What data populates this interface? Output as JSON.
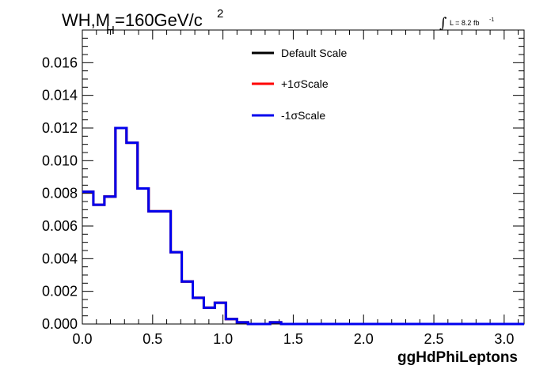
{
  "chart_data": {
    "type": "histogram-step",
    "title_main": "WH,M",
    "title_sub": "H",
    "title_rest": "=160GeV/c",
    "title_sup": "2",
    "lumi_integral": "∫",
    "lumi_text": "L = 8.2 fb",
    "lumi_sup": "-1",
    "xlabel": "ggHdPhiLeptons",
    "xlim": [
      0,
      3.1416
    ],
    "ylim": [
      0,
      0.018
    ],
    "xticks": [
      0.0,
      0.5,
      1.0,
      1.5,
      2.0,
      2.5,
      3.0
    ],
    "xtick_labels": [
      "0.0",
      "0.5",
      "1.0",
      "1.5",
      "2.0",
      "2.5",
      "3.0"
    ],
    "yticks": [
      0.0,
      0.002,
      0.004,
      0.006,
      0.008,
      0.01,
      0.012,
      0.014,
      0.016
    ],
    "ytick_labels": [
      "0.000",
      "0.002",
      "0.004",
      "0.006",
      "0.008",
      "0.010",
      "0.012",
      "0.014",
      "0.016"
    ],
    "bin_edges": [
      0.0,
      0.0785,
      0.1571,
      0.2356,
      0.3142,
      0.3927,
      0.4712,
      0.5498,
      0.6283,
      0.7069,
      0.7854,
      0.8639,
      0.9425,
      1.021,
      1.0996,
      1.1781,
      1.2566,
      1.3352,
      1.4137,
      1.4923,
      1.5708,
      1.6493,
      1.7279,
      1.8064,
      1.885,
      1.9635,
      2.042,
      2.1206,
      2.1991,
      2.2777,
      2.3562,
      2.4347,
      2.5133,
      2.5918,
      2.6704,
      2.7489,
      2.8274,
      2.906,
      2.9845,
      3.0631,
      3.1416
    ],
    "series": [
      {
        "name": "Default Scale",
        "color": "#000000",
        "values": [
          0.0081,
          0.0073,
          0.0078,
          0.012,
          0.0111,
          0.0083,
          0.0069,
          0.0069,
          0.0044,
          0.0026,
          0.0016,
          0.001,
          0.0013,
          0.0003,
          0.0001,
          0.0,
          0.0,
          0.0001,
          0.0,
          0.0,
          0.0,
          0.0,
          0.0,
          0.0,
          0.0,
          0.0,
          0.0,
          0.0,
          0.0,
          0.0,
          0.0,
          0.0,
          0.0,
          0.0,
          0.0,
          0.0,
          0.0,
          0.0,
          0.0,
          0.0
        ]
      },
      {
        "name": "+1σScale",
        "color": "#ff0000",
        "values": [
          0.0081,
          0.0073,
          0.0078,
          0.012,
          0.0111,
          0.0083,
          0.0069,
          0.0069,
          0.0044,
          0.0026,
          0.0016,
          0.001,
          0.0013,
          0.0003,
          0.0001,
          0.0,
          0.0,
          0.0001,
          0.0,
          0.0,
          0.0,
          0.0,
          0.0,
          0.0,
          0.0,
          0.0,
          0.0,
          0.0,
          0.0,
          0.0,
          0.0,
          0.0,
          0.0,
          0.0,
          0.0,
          0.0,
          0.0,
          0.0,
          0.0,
          0.0
        ]
      },
      {
        "name": "-1σScale",
        "color": "#0000ee",
        "values": [
          0.0081,
          0.0073,
          0.0078,
          0.012,
          0.0111,
          0.0083,
          0.0069,
          0.0069,
          0.0044,
          0.0026,
          0.0016,
          0.001,
          0.0013,
          0.0003,
          0.0001,
          0.0,
          0.0,
          0.0001,
          0.0,
          0.0,
          0.0,
          0.0,
          0.0,
          0.0,
          0.0,
          0.0,
          0.0,
          0.0,
          0.0,
          0.0,
          0.0,
          0.0,
          0.0,
          0.0,
          0.0,
          0.0,
          0.0,
          0.0,
          0.0,
          0.0
        ]
      }
    ],
    "legend_position": "top-center",
    "grid": false
  }
}
